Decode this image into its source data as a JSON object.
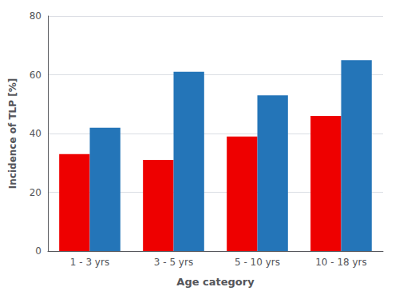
{
  "chart_data": {
    "type": "bar",
    "xlabel": "Age category",
    "ylabel": "Incidence of TLP [%]",
    "categories": [
      "1 - 3 yrs",
      "3 - 5 yrs",
      "5 - 10 yrs",
      "10 - 18 yrs"
    ],
    "series": [
      {
        "color": "#ee0000",
        "values": [
          33,
          31,
          39,
          46
        ]
      },
      {
        "color": "#2475b8",
        "values": [
          42,
          61,
          53,
          65
        ]
      }
    ],
    "ylim": [
      0,
      80
    ],
    "yticks": [
      0,
      20,
      40,
      60,
      80
    ],
    "grid": true
  }
}
